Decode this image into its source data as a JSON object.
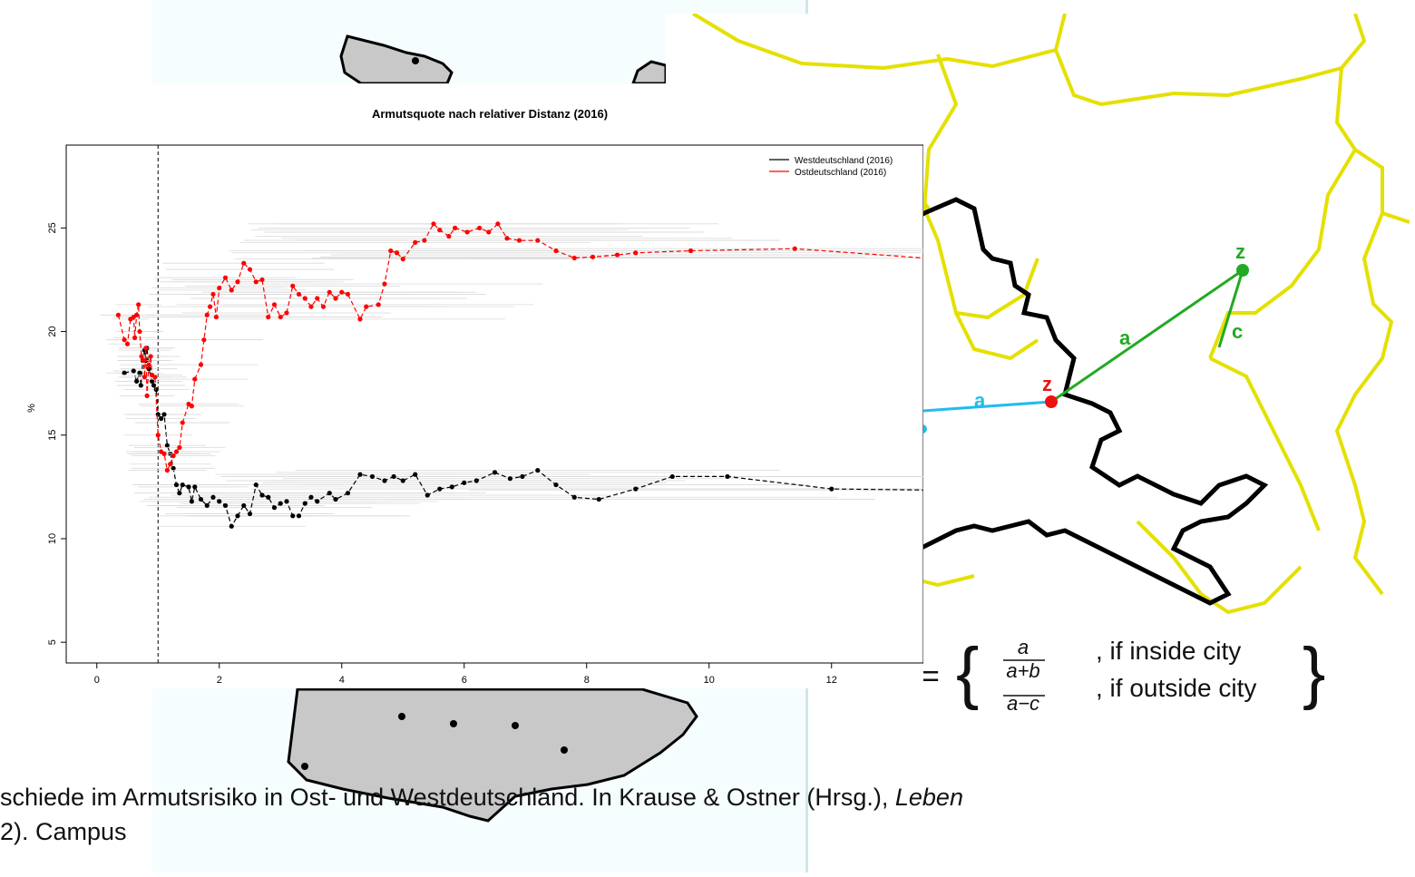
{
  "chart_data": {
    "type": "line",
    "title": "Armutsquote nach relativer Distanz (2016)",
    "xlabel": "",
    "ylabel": "%",
    "xlim": [
      -0.5,
      13.5
    ],
    "ylim": [
      4,
      29
    ],
    "x_ticks": [
      "0",
      "2",
      "4",
      "6",
      "8",
      "10",
      "12"
    ],
    "y_ticks": [
      "5",
      "10",
      "15",
      "20",
      "25"
    ],
    "reference_line_x": 1,
    "legend_position": "top-right",
    "series": [
      {
        "name": "Westdeutschland (2016)",
        "color": "#000000",
        "x": [
          0.45,
          0.6,
          0.65,
          0.7,
          0.72,
          0.75,
          0.78,
          0.8,
          0.82,
          0.85,
          0.9,
          0.93,
          0.97,
          1.0,
          1.05,
          1.1,
          1.15,
          1.2,
          1.25,
          1.3,
          1.35,
          1.4,
          1.5,
          1.55,
          1.6,
          1.7,
          1.8,
          1.9,
          2.0,
          2.1,
          2.2,
          2.3,
          2.4,
          2.5,
          2.6,
          2.7,
          2.8,
          2.9,
          3.0,
          3.1,
          3.2,
          3.3,
          3.4,
          3.5,
          3.6,
          3.8,
          3.9,
          4.1,
          4.3,
          4.5,
          4.7,
          4.85,
          5.0,
          5.2,
          5.4,
          5.6,
          5.8,
          6.0,
          6.2,
          6.5,
          6.75,
          6.95,
          7.2,
          7.5,
          7.8,
          8.2,
          8.8,
          9.4,
          10.3,
          12.0,
          13.5
        ],
        "y": [
          18.0,
          18.1,
          17.6,
          18.0,
          17.4,
          18.6,
          19.1,
          18.6,
          19.2,
          18.2,
          17.6,
          17.4,
          17.2,
          16.0,
          15.8,
          16.0,
          14.5,
          14.1,
          13.4,
          12.6,
          12.2,
          12.6,
          12.5,
          11.8,
          12.5,
          11.9,
          11.6,
          12.0,
          11.8,
          11.6,
          10.6,
          11.1,
          11.6,
          11.2,
          12.6,
          12.1,
          12.0,
          11.5,
          11.7,
          11.8,
          11.1,
          11.1,
          11.7,
          12.0,
          11.8,
          12.2,
          11.9,
          12.2,
          13.1,
          13.0,
          12.8,
          13.0,
          12.8,
          13.1,
          12.1,
          12.4,
          12.5,
          12.7,
          12.8,
          13.2,
          12.9,
          13.0,
          13.3,
          12.6,
          12.0,
          11.9,
          12.4,
          13.0,
          13.0,
          12.4,
          12.35
        ]
      },
      {
        "name": "Ostdeutschland (2016)",
        "color": "#ff0000",
        "x": [
          0.35,
          0.45,
          0.5,
          0.55,
          0.6,
          0.62,
          0.65,
          0.68,
          0.7,
          0.73,
          0.76,
          0.78,
          0.8,
          0.82,
          0.85,
          0.88,
          0.9,
          0.95,
          1.0,
          1.05,
          1.1,
          1.15,
          1.2,
          1.25,
          1.3,
          1.35,
          1.4,
          1.5,
          1.55,
          1.6,
          1.7,
          1.75,
          1.8,
          1.85,
          1.9,
          1.95,
          2.0,
          2.1,
          2.2,
          2.3,
          2.4,
          2.5,
          2.6,
          2.7,
          2.8,
          2.9,
          3.0,
          3.1,
          3.2,
          3.3,
          3.4,
          3.5,
          3.6,
          3.7,
          3.8,
          3.9,
          4.0,
          4.1,
          4.3,
          4.4,
          4.6,
          4.7,
          4.8,
          4.9,
          5.0,
          5.2,
          5.35,
          5.5,
          5.6,
          5.75,
          5.85,
          6.05,
          6.25,
          6.4,
          6.55,
          6.7,
          6.9,
          7.2,
          7.5,
          7.8,
          8.1,
          8.5,
          8.8,
          9.7,
          11.4,
          13.5
        ],
        "y": [
          20.8,
          19.6,
          19.4,
          20.6,
          20.7,
          19.7,
          20.8,
          21.3,
          20.0,
          18.8,
          18.6,
          17.8,
          19.2,
          16.9,
          18.4,
          18.8,
          17.9,
          17.8,
          15.0,
          14.2,
          14.1,
          13.3,
          13.6,
          14.0,
          14.2,
          14.4,
          15.6,
          16.5,
          16.4,
          17.7,
          18.4,
          19.6,
          20.8,
          21.2,
          21.8,
          20.7,
          22.1,
          22.6,
          22.0,
          22.4,
          23.3,
          23.0,
          22.4,
          22.5,
          20.7,
          21.3,
          20.7,
          20.9,
          22.2,
          21.8,
          21.6,
          21.2,
          21.6,
          21.2,
          21.9,
          21.6,
          21.9,
          21.8,
          20.6,
          21.2,
          21.3,
          22.3,
          23.9,
          23.8,
          23.5,
          24.3,
          24.4,
          25.2,
          24.9,
          24.6,
          25.0,
          24.8,
          25.0,
          24.8,
          25.2,
          24.5,
          24.4,
          24.4,
          23.9,
          23.55,
          23.6,
          23.7,
          23.8,
          23.9,
          24.0,
          23.55
        ]
      }
    ]
  },
  "formula": {
    "equals": "=",
    "case1_num": "a",
    "case1_den": "a+b",
    "case1_cond": ", if inside city",
    "case2_num": "a",
    "case2_den": "a−c",
    "case2_cond": ", if outside city"
  },
  "map_labels": {
    "z": "z",
    "z2": "z",
    "a_green": "a",
    "a_blue": "a",
    "c": "c"
  },
  "caption": {
    "line1": "schiede im Armutsrisiko in Ost- und Westdeutschland. In Krause & Ostner (Hrsg.), ",
    "line1_italic": "Leben",
    "line2": "2). Campus"
  }
}
